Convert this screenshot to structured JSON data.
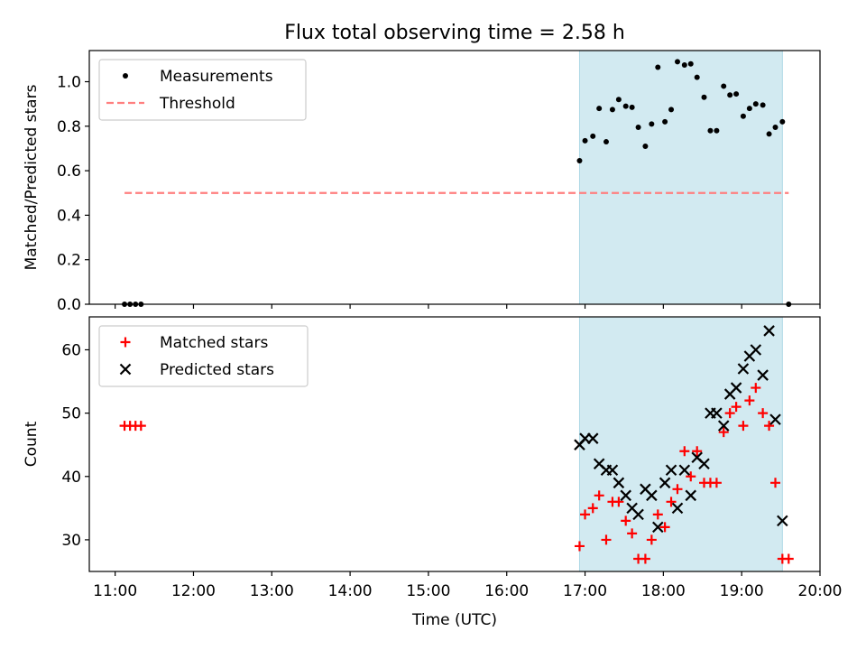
{
  "figure": {
    "title": "Flux total observing time = 2.58 h"
  },
  "chart_data": [
    {
      "type": "scatter",
      "ylabel": "Matched/Predicted stars",
      "xlabel": "",
      "xlim_hours": [
        10.67,
        20.0
      ],
      "ylim": [
        0.0,
        1.14
      ],
      "yticks": [
        0.0,
        0.2,
        0.4,
        0.6,
        0.8,
        1.0
      ],
      "ytick_labels": [
        "0.0",
        "0.2",
        "0.4",
        "0.6",
        "0.8",
        "1.0"
      ],
      "shaded_span_hours": [
        16.93,
        19.52
      ],
      "shade_color": "#add8e6",
      "legend_position": "upper-left",
      "series": [
        {
          "name": "Measurements",
          "marker": "dot",
          "color": "#000000",
          "x_hours": [
            11.12,
            11.19,
            11.26,
            11.33,
            16.93,
            17.0,
            17.1,
            17.18,
            17.27,
            17.35,
            17.43,
            17.52,
            17.6,
            17.68,
            17.77,
            17.85,
            17.93,
            18.02,
            18.1,
            18.18,
            18.27,
            18.35,
            18.43,
            18.52,
            18.6,
            18.68,
            18.77,
            18.85,
            18.93,
            19.02,
            19.1,
            19.18,
            19.27,
            19.35,
            19.43,
            19.52,
            19.6
          ],
          "values": [
            0.0,
            0.0,
            0.0,
            0.0,
            0.645,
            0.735,
            0.755,
            0.88,
            0.73,
            0.875,
            0.92,
            0.89,
            0.885,
            0.795,
            0.71,
            0.81,
            1.065,
            0.82,
            0.875,
            1.09,
            1.075,
            1.08,
            1.02,
            0.93,
            0.78,
            0.78,
            0.98,
            0.94,
            0.945,
            0.845,
            0.88,
            0.9,
            0.895,
            0.765,
            0.795,
            0.82,
            0.0
          ]
        },
        {
          "name": "Threshold",
          "marker": "dashed-line",
          "color": "#ff7f7f",
          "x_hours": [
            11.12,
            19.6
          ],
          "values": [
            0.5,
            0.5
          ]
        }
      ]
    },
    {
      "type": "scatter",
      "ylabel": "Count",
      "xlabel": "Time (UTC)",
      "xlim_hours": [
        10.67,
        20.0
      ],
      "ylim": [
        25,
        65.2
      ],
      "yticks": [
        30,
        40,
        50,
        60
      ],
      "ytick_labels": [
        "30",
        "40",
        "50",
        "60"
      ],
      "xticks_hours": [
        11,
        12,
        13,
        14,
        15,
        16,
        17,
        18,
        19,
        20
      ],
      "xtick_labels": [
        "11:00",
        "12:00",
        "13:00",
        "14:00",
        "15:00",
        "16:00",
        "17:00",
        "18:00",
        "19:00",
        "20:00"
      ],
      "shaded_span_hours": [
        16.93,
        19.52
      ],
      "shade_color": "#add8e6",
      "legend_position": "upper-left",
      "series": [
        {
          "name": "Matched stars",
          "marker": "plus",
          "color": "#ff0000",
          "x_hours": [
            11.12,
            11.19,
            11.26,
            11.33,
            16.93,
            17.0,
            17.1,
            17.18,
            17.27,
            17.35,
            17.43,
            17.52,
            17.6,
            17.68,
            17.77,
            17.85,
            17.93,
            18.02,
            18.1,
            18.18,
            18.27,
            18.35,
            18.43,
            18.52,
            18.6,
            18.68,
            18.77,
            18.85,
            18.93,
            19.02,
            19.1,
            19.18,
            19.27,
            19.35,
            19.43,
            19.52,
            19.6
          ],
          "values": [
            48,
            48,
            48,
            48,
            29,
            34,
            35,
            37,
            30,
            36,
            36,
            33,
            31,
            27,
            27,
            30,
            34,
            32,
            36,
            38,
            44,
            40,
            44,
            39,
            39,
            39,
            47,
            50,
            51,
            48,
            52,
            54,
            50,
            48,
            39,
            27,
            27
          ]
        },
        {
          "name": "Predicted stars",
          "marker": "x",
          "color": "#000000",
          "x_hours": [
            16.93,
            17.0,
            17.1,
            17.18,
            17.27,
            17.35,
            17.43,
            17.52,
            17.6,
            17.68,
            17.77,
            17.85,
            17.93,
            18.02,
            18.1,
            18.18,
            18.27,
            18.35,
            18.43,
            18.52,
            18.6,
            18.68,
            18.77,
            18.85,
            18.93,
            19.02,
            19.1,
            19.18,
            19.27,
            19.35,
            19.43,
            19.52
          ],
          "values": [
            45,
            46,
            46,
            42,
            41,
            41,
            39,
            37,
            35,
            34,
            38,
            37,
            32,
            39,
            41,
            35,
            41,
            37,
            43,
            42,
            50,
            50,
            48,
            53,
            54,
            57,
            59,
            60,
            56,
            63,
            49,
            33
          ]
        }
      ]
    }
  ]
}
